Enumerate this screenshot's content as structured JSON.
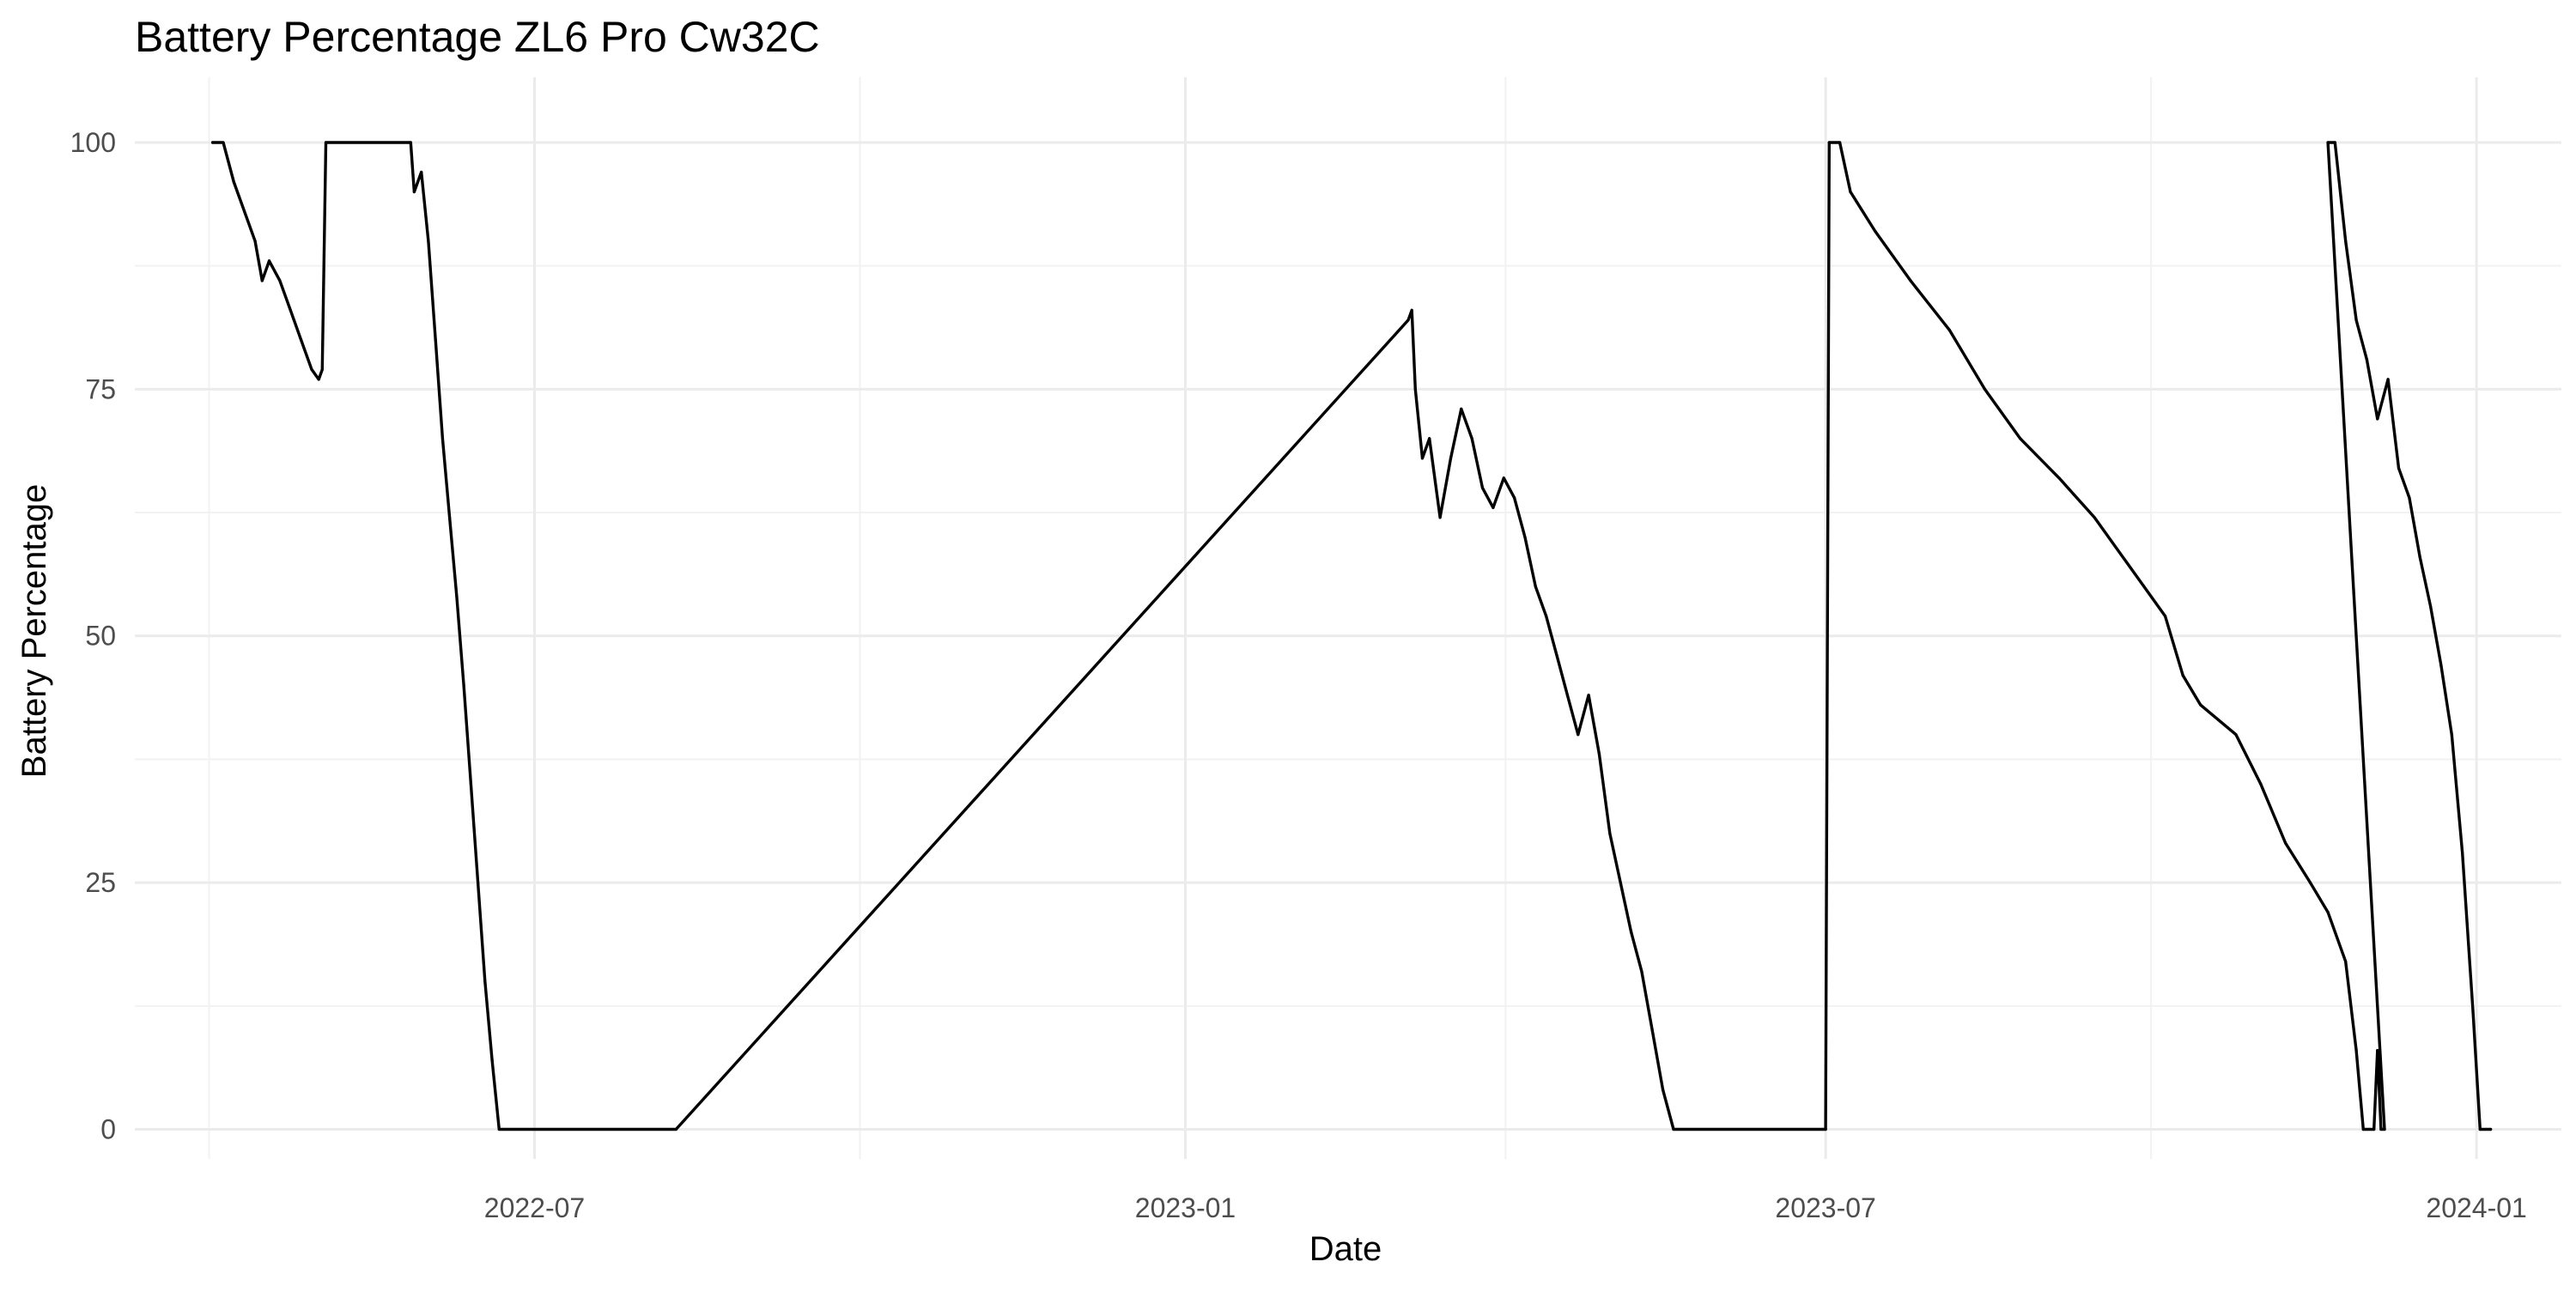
{
  "chart_data": {
    "type": "line",
    "title": "Battery Percentage ZL6 Pro Cw32C",
    "xlabel": "Date",
    "ylabel": "Battery Percentage",
    "x_ticks": [
      "2022-07",
      "2023-01",
      "2023-07",
      "2024-01"
    ],
    "x_tick_dates": [
      "2022-07-01",
      "2023-01-01",
      "2023-07-01",
      "2024-01-01"
    ],
    "y_ticks": [
      0,
      25,
      50,
      75,
      100
    ],
    "xlim": [
      "2022-03-10",
      "2024-01-25"
    ],
    "ylim": [
      -3,
      104
    ],
    "grid": true,
    "legend": "none",
    "line_color": "#000000",
    "series": [
      {
        "points": [
          [
            "2022-04-01",
            100
          ],
          [
            "2022-04-04",
            100
          ],
          [
            "2022-04-07",
            96
          ],
          [
            "2022-04-10",
            93
          ],
          [
            "2022-04-13",
            90
          ],
          [
            "2022-04-15",
            86
          ],
          [
            "2022-04-17",
            88
          ],
          [
            "2022-04-20",
            86
          ],
          [
            "2022-04-23",
            83
          ],
          [
            "2022-04-26",
            80
          ],
          [
            "2022-04-29",
            77
          ],
          [
            "2022-05-01",
            76
          ],
          [
            "2022-05-02",
            77
          ],
          [
            "2022-05-03",
            100
          ],
          [
            "2022-05-27",
            100
          ],
          [
            "2022-05-28",
            95
          ],
          [
            "2022-05-30",
            97
          ],
          [
            "2022-06-01",
            90
          ],
          [
            "2022-06-03",
            80
          ],
          [
            "2022-06-05",
            70
          ],
          [
            "2022-06-07",
            62
          ],
          [
            "2022-06-09",
            54
          ],
          [
            "2022-06-11",
            45
          ],
          [
            "2022-06-13",
            35
          ],
          [
            "2022-06-15",
            25
          ],
          [
            "2022-06-17",
            15
          ],
          [
            "2022-06-19",
            7
          ],
          [
            "2022-06-21",
            0
          ],
          [
            "2022-08-10",
            0
          ],
          [
            "2023-03-05",
            82
          ],
          [
            "2023-03-06",
            83
          ],
          [
            "2023-03-07",
            75
          ],
          [
            "2023-03-09",
            68
          ],
          [
            "2023-03-11",
            70
          ],
          [
            "2023-03-14",
            62
          ],
          [
            "2023-03-17",
            68
          ],
          [
            "2023-03-20",
            73
          ],
          [
            "2023-03-23",
            70
          ],
          [
            "2023-03-26",
            65
          ],
          [
            "2023-03-29",
            63
          ],
          [
            "2023-04-01",
            66
          ],
          [
            "2023-04-04",
            64
          ],
          [
            "2023-04-07",
            60
          ],
          [
            "2023-04-10",
            55
          ],
          [
            "2023-04-13",
            52
          ],
          [
            "2023-04-16",
            48
          ],
          [
            "2023-04-19",
            44
          ],
          [
            "2023-04-22",
            40
          ],
          [
            "2023-04-25",
            44
          ],
          [
            "2023-04-28",
            38
          ],
          [
            "2023-05-01",
            30
          ],
          [
            "2023-05-04",
            25
          ],
          [
            "2023-05-07",
            20
          ],
          [
            "2023-05-10",
            16
          ],
          [
            "2023-05-13",
            10
          ],
          [
            "2023-05-16",
            4
          ],
          [
            "2023-05-19",
            0
          ],
          [
            "2023-07-01",
            0
          ],
          [
            "2023-07-02",
            100
          ],
          [
            "2023-07-05",
            100
          ],
          [
            "2023-07-08",
            95
          ],
          [
            "2023-07-15",
            91
          ],
          [
            "2023-07-25",
            86
          ],
          [
            "2023-08-05",
            81
          ],
          [
            "2023-08-15",
            75
          ],
          [
            "2023-08-25",
            70
          ],
          [
            "2023-09-05",
            66
          ],
          [
            "2023-09-15",
            62
          ],
          [
            "2023-09-25",
            57
          ],
          [
            "2023-10-05",
            52
          ],
          [
            "2023-10-10",
            46
          ],
          [
            "2023-10-15",
            43
          ],
          [
            "2023-10-25",
            40
          ],
          [
            "2023-11-01",
            35
          ],
          [
            "2023-11-08",
            29
          ],
          [
            "2023-11-15",
            25
          ],
          [
            "2023-11-20",
            22
          ],
          [
            "2023-11-25",
            17
          ],
          [
            "2023-11-28",
            8
          ],
          [
            "2023-11-30",
            0
          ],
          [
            "2023-12-03",
            0
          ],
          [
            "2023-12-04",
            8
          ],
          [
            "2023-12-05",
            0
          ],
          [
            "2023-12-06",
            0
          ],
          [
            "2023-11-20",
            100
          ],
          [
            "2023-11-22",
            100
          ],
          [
            "2023-11-25",
            90
          ],
          [
            "2023-11-28",
            82
          ],
          [
            "2023-12-01",
            78
          ],
          [
            "2023-12-04",
            72
          ],
          [
            "2023-12-07",
            76
          ],
          [
            "2023-12-10",
            67
          ],
          [
            "2023-12-13",
            64
          ],
          [
            "2023-12-16",
            58
          ],
          [
            "2023-12-19",
            53
          ],
          [
            "2023-12-22",
            47
          ],
          [
            "2023-12-25",
            40
          ],
          [
            "2023-12-28",
            28
          ],
          [
            "2023-12-31",
            12
          ],
          [
            "2024-01-02",
            0
          ],
          [
            "2024-01-05",
            0
          ]
        ]
      }
    ]
  }
}
